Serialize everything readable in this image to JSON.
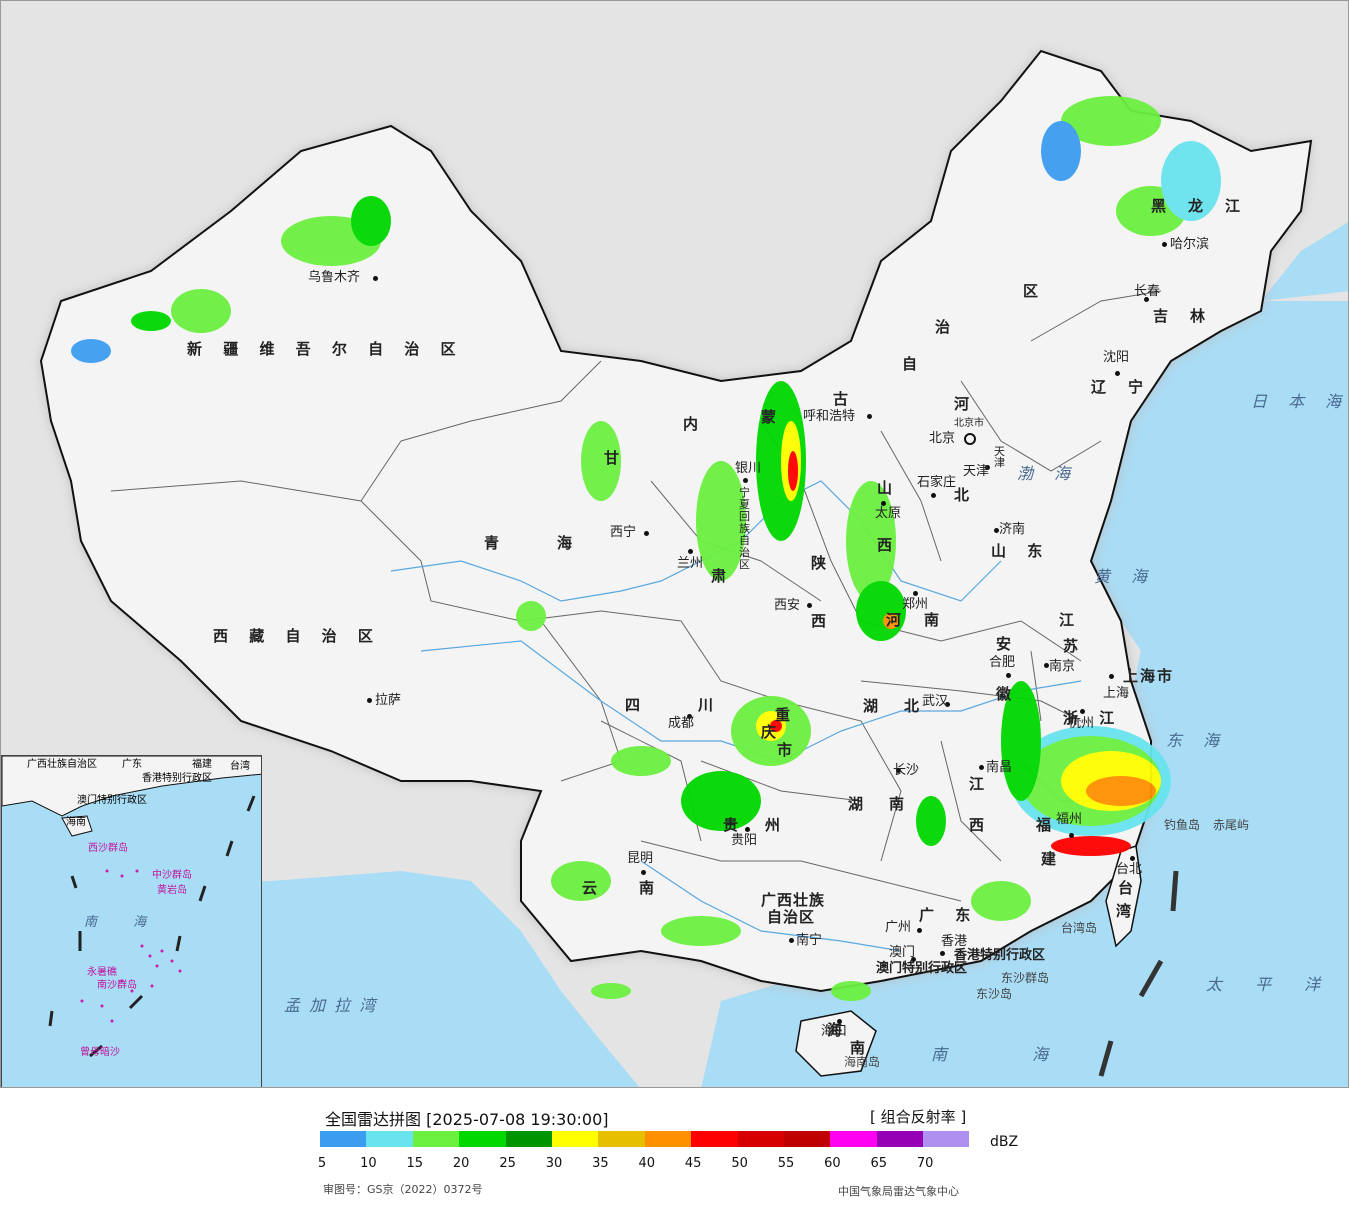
{
  "legend": {
    "title": "全国雷达拼图 [2025-07-08 19:30:00]",
    "product": "[ 组合反射率 ]",
    "unit": "dBZ",
    "ticks": [
      "5",
      "10",
      "15",
      "20",
      "25",
      "30",
      "35",
      "40",
      "45",
      "50",
      "55",
      "60",
      "65",
      "70"
    ],
    "colors": [
      "#3c9cf0",
      "#68e4ee",
      "#6cf040",
      "#00d800",
      "#009400",
      "#ffff00",
      "#e6c000",
      "#ff9000",
      "#ff0000",
      "#d60000",
      "#c00000",
      "#ff00f0",
      "#9600b4",
      "#ae90f0"
    ],
    "approval": "审图号：GS京（2022）0372号",
    "source": "中国气象局雷达气象中心"
  },
  "provinces": {
    "xinjiang": "新 疆 维 吾 尔 自 治 区",
    "tibet": "西 藏 自 治 区",
    "qinghai": [
      "青",
      "海"
    ],
    "gansu": [
      "甘",
      "肃"
    ],
    "neimenggu": [
      "内",
      "蒙",
      "古",
      "自",
      "治",
      "区"
    ],
    "heilongjiang": [
      "黑",
      "龙",
      "江"
    ],
    "jilin": [
      "吉",
      "林"
    ],
    "liaoning": [
      "辽",
      "宁"
    ],
    "hebei": [
      "河",
      "北"
    ],
    "shanxi": [
      "山",
      "西"
    ],
    "shaanxi": [
      "陕",
      "西"
    ],
    "ningxia": "宁夏回族自治区",
    "shandong": "山 东",
    "henan": [
      "河",
      "南"
    ],
    "jiangsu": [
      "江",
      "苏"
    ],
    "anhui": [
      "安",
      "徽"
    ],
    "shanghai": "上海市",
    "zhejiang": "浙 江",
    "hubei": [
      "湖",
      "北"
    ],
    "sichuan": [
      "四",
      "川"
    ],
    "chongqing": [
      "重",
      "庆",
      "市"
    ],
    "hunan": [
      "湖",
      "南"
    ],
    "jiangxi": [
      "江",
      "西"
    ],
    "fujian": [
      "福",
      "建"
    ],
    "guizhou": [
      "贵",
      "州"
    ],
    "yunnan": [
      "云",
      "南"
    ],
    "guangxi": [
      "广西壮族",
      "自治区"
    ],
    "guangdong": "广 东",
    "hainan": [
      "海",
      "南"
    ],
    "taiwan": [
      "台",
      "湾"
    ],
    "beijing": "北京市",
    "tianjin": "天津",
    "hongkong": "香港特别行政区",
    "macau": "澳门特别行政区"
  },
  "cities": {
    "urumqi": "乌鲁木齐",
    "lhasa": "拉萨",
    "xining": "西宁",
    "lanzhou": "兰州",
    "yinchuan": "银川",
    "hohhot": "呼和浩特",
    "beijing": "北京",
    "tianjin": "天津",
    "shijiazhuang": "石家庄",
    "taiyuan": "太原",
    "jinan": "济南",
    "zhengzhou": "郑州",
    "xian": "西安",
    "hefei": "合肥",
    "nanjing": "南京",
    "shanghai": "上海",
    "hangzhou": "杭州",
    "wuhan": "武汉",
    "chengdu": "成都",
    "changsha": "长沙",
    "nanchang": "南昌",
    "fuzhou": "福州",
    "guiyang": "贵阳",
    "kunming": "昆明",
    "nanning": "南宁",
    "guangzhou": "广州",
    "hongkong": "香港",
    "macau": "澳门",
    "haikou": "海口",
    "taipei": "台北",
    "harbin": "哈尔滨",
    "changchun": "长春",
    "shenyang": "沈阳"
  },
  "seas": {
    "bohai": "渤 海",
    "yellow": "黄 海",
    "east": "东 海",
    "south": "南 海",
    "japan": "日 本 海",
    "pacific": "太 平 洋",
    "bengal": "孟 加 拉 湾"
  },
  "islands": {
    "diaoyu": "钓鱼岛",
    "chiwei": "赤尾屿",
    "taiwan_island": "台湾岛",
    "dongsha": "东沙群岛",
    "dongsha_island": "东沙岛",
    "hainan_island": "海南岛"
  },
  "inset": {
    "guangxi": "广西壮族自治区",
    "guangdong": "广东",
    "fujian": "福建",
    "taiwan": "台湾",
    "hk": "香港特别行政区",
    "macau": "澳门特别行政区",
    "hainan": "海南",
    "xisha": "西沙群岛",
    "zhongsha": "中沙群岛",
    "huangyan": "黄岩岛",
    "south_sea": "南 海",
    "nansha": "南沙群岛",
    "yongshu": "永暑礁",
    "zengmu": "曾母暗沙"
  }
}
